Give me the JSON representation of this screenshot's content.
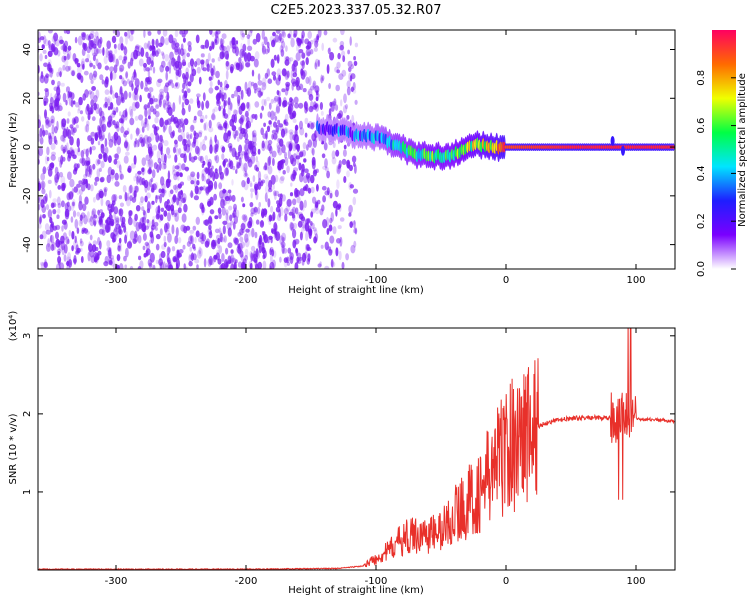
{
  "title": "C2E5.2023.337.05.32.R07",
  "colors": {
    "snr_line": "#e8302a",
    "scatter_low": "#7a1cf0",
    "colormap": [
      "#ffffff",
      "#7a00ff",
      "#1e1eff",
      "#00e5ff",
      "#00ff44",
      "#f0ff00",
      "#ff6a00",
      "#ff0060"
    ]
  },
  "chart_data": [
    {
      "type": "heatmap",
      "xlabel": "Height of straight line (km)",
      "ylabel": "Frequency (Hz)",
      "xlim": [
        -360,
        130
      ],
      "ylim": [
        -50,
        48
      ],
      "x_ticks": [
        -300,
        -200,
        -100,
        0,
        100
      ],
      "y_ticks": [
        -40,
        -20,
        0,
        20,
        40
      ],
      "x_tick_labels": [
        "-300",
        "-200",
        "-100",
        "0",
        "100"
      ],
      "y_tick_labels": [
        "-40",
        "-20",
        "0",
        "20",
        "40"
      ],
      "colorbar": {
        "label": "Normalized spectral amplitude",
        "range": [
          0,
          1
        ],
        "ticks": [
          0.0,
          0.2,
          0.4,
          0.6,
          0.8
        ],
        "tick_labels": [
          "0.0",
          "0.2",
          "0.4",
          "0.6",
          "0.8"
        ]
      },
      "noise_region": {
        "x": [
          -360,
          -115
        ],
        "freq": [
          -50,
          48
        ],
        "amplitude_range": [
          0.0,
          0.15
        ]
      },
      "signal_track": [
        {
          "x": -145,
          "freq": 8,
          "amp": 0.25
        },
        {
          "x": -130,
          "freq": 7,
          "amp": 0.28
        },
        {
          "x": -115,
          "freq": 5,
          "amp": 0.3
        },
        {
          "x": -100,
          "freq": 4,
          "amp": 0.35
        },
        {
          "x": -85,
          "freq": 1,
          "amp": 0.45
        },
        {
          "x": -70,
          "freq": -3,
          "amp": 0.5
        },
        {
          "x": -55,
          "freq": -4,
          "amp": 0.55
        },
        {
          "x": -40,
          "freq": -3,
          "amp": 0.55
        },
        {
          "x": -25,
          "freq": 1,
          "amp": 0.65
        },
        {
          "x": -10,
          "freq": 0,
          "amp": 0.75
        },
        {
          "x": 0,
          "freq": 0,
          "amp": 0.9
        },
        {
          "x": 50,
          "freq": 0,
          "amp": 0.95
        },
        {
          "x": 90,
          "freq": 0,
          "amp": 0.95
        },
        {
          "x": 130,
          "freq": 0,
          "amp": 0.95
        }
      ]
    },
    {
      "type": "line",
      "xlabel": "Height of straight line (km)",
      "ylabel": "SNR (10 * v/v)",
      "y_multiplier_label": "(x10⁴)",
      "xlim": [
        -360,
        130
      ],
      "ylim": [
        0,
        3.1
      ],
      "x_ticks": [
        -300,
        -200,
        -100,
        0,
        100
      ],
      "y_ticks": [
        1,
        2,
        3
      ],
      "x_tick_labels": [
        "-300",
        "-200",
        "-100",
        "0",
        "100"
      ],
      "y_tick_labels": [
        "1",
        "2",
        "3"
      ],
      "series": [
        {
          "x": [
            -360,
            -200,
            -130,
            -110,
            -100,
            -90,
            -80,
            -70,
            -60,
            -50,
            -40,
            -30,
            -20,
            -10,
            0,
            10,
            20,
            30,
            40,
            50,
            60,
            70,
            80,
            85,
            90,
            95,
            100,
            110,
            120,
            130
          ],
          "y": [
            0.01,
            0.01,
            0.02,
            0.05,
            0.15,
            0.25,
            0.4,
            0.45,
            0.45,
            0.5,
            0.7,
            0.85,
            1.0,
            1.3,
            1.55,
            1.7,
            1.8,
            1.88,
            1.92,
            1.94,
            1.95,
            1.95,
            1.94,
            1.95,
            1.96,
            1.97,
            1.93,
            1.93,
            1.92,
            1.9
          ]
        }
      ]
    }
  ]
}
